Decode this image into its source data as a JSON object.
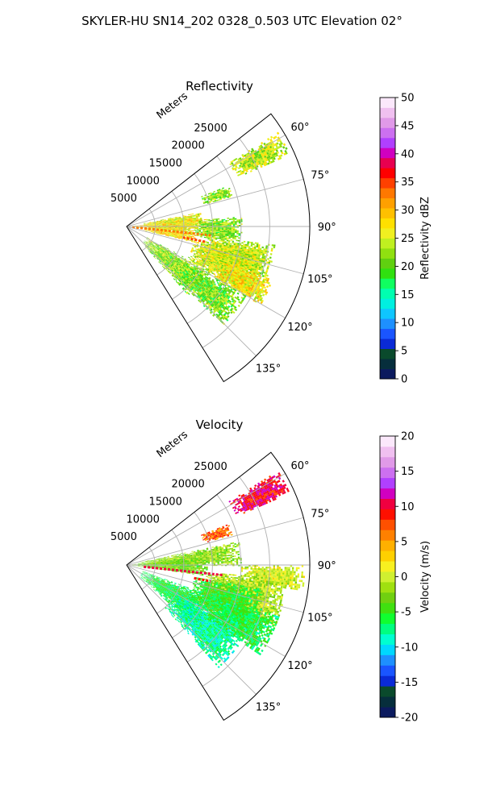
{
  "figure": {
    "suptitle": "SKYLER-HU  SN14_202  0328_0.503 UTC Elevation 02°"
  },
  "chart_data": [
    {
      "type": "heatmap",
      "title": "Reflectivity",
      "projection": "polar-sector",
      "radial_axis": {
        "label": "Meters",
        "ticks": [
          5000,
          10000,
          15000,
          20000,
          25000
        ],
        "tick_labels": [
          "5000",
          "10000",
          "15000",
          "20000",
          "25000"
        ],
        "range": [
          0,
          32000
        ]
      },
      "azimuth_axis": {
        "range_deg": [
          52,
          148
        ],
        "ticks_deg": [
          60,
          75,
          90,
          105,
          120,
          135
        ],
        "tick_labels": [
          "60°",
          "75°",
          "90°",
          "105°",
          "120°",
          "135°"
        ]
      },
      "grid": true,
      "colorbar": {
        "label": "Reflectivity dBZ",
        "range": [
          0,
          50
        ],
        "ticks": [
          0,
          5,
          10,
          15,
          20,
          25,
          30,
          35,
          40,
          45,
          50
        ],
        "tick_labels": [
          "0",
          "5",
          "10",
          "15",
          "20",
          "25",
          "30",
          "35",
          "40",
          "45",
          "50"
        ]
      },
      "echoes": [
        {
          "az": [
            58,
            66
          ],
          "r": [
            21000,
            31000
          ],
          "value": 24
        },
        {
          "az": [
            68,
            74
          ],
          "r": [
            14000,
            19000
          ],
          "value": 22
        },
        {
          "az": [
            79,
            86
          ],
          "r": [
            3000,
            13000
          ],
          "value": 26
        },
        {
          "az": [
            84,
            92
          ],
          "r": [
            1000,
            14000
          ],
          "value": 27
        },
        {
          "az": [
            85,
            98
          ],
          "r": [
            12000,
            20000
          ],
          "value": 22
        },
        {
          "az": [
            90,
            96
          ],
          "r": [
            1500,
            12000
          ],
          "value": 26
        },
        {
          "az": [
            95,
            103
          ],
          "r": [
            3000,
            12000
          ],
          "value": 28
        },
        {
          "az": [
            97,
            112
          ],
          "r": [
            14000,
            26000
          ],
          "value": 24
        },
        {
          "az": [
            100,
            120
          ],
          "r": [
            12000,
            24000
          ],
          "value": 25
        },
        {
          "az": [
            110,
            120
          ],
          "r": [
            18000,
            27000
          ],
          "value": 27
        },
        {
          "az": [
            118,
            138
          ],
          "r": [
            4000,
            16000
          ],
          "value": 22
        },
        {
          "az": [
            120,
            136
          ],
          "r": [
            12000,
            24000
          ],
          "value": 21
        }
      ],
      "streaks": [
        {
          "az": 96,
          "r": [
            1000,
            15000
          ],
          "value": 33
        },
        {
          "az": 101,
          "r": [
            10000,
            14000
          ],
          "value": 34
        }
      ]
    },
    {
      "type": "heatmap",
      "title": "Velocity",
      "projection": "polar-sector",
      "radial_axis": {
        "label": "Meters",
        "ticks": [
          5000,
          10000,
          15000,
          20000,
          25000
        ],
        "tick_labels": [
          "5000",
          "10000",
          "15000",
          "20000",
          "25000"
        ],
        "range": [
          0,
          32000
        ]
      },
      "azimuth_axis": {
        "range_deg": [
          52,
          148
        ],
        "ticks_deg": [
          60,
          75,
          90,
          105,
          120,
          135
        ],
        "tick_labels": [
          "60°",
          "75°",
          "90°",
          "105°",
          "120°",
          "135°"
        ]
      },
      "grid": true,
      "colorbar": {
        "label": "Velocity (m/s)",
        "range": [
          -20,
          20
        ],
        "ticks": [
          -20,
          -15,
          -10,
          -5,
          0,
          5,
          10,
          15,
          20
        ],
        "tick_labels": [
          "-20",
          "-15",
          "-10",
          "-5",
          "0",
          "5",
          "10",
          "15",
          "20"
        ]
      },
      "echoes": [
        {
          "az": [
            58,
            66
          ],
          "r": [
            21000,
            31000
          ],
          "value": 10
        },
        {
          "az": [
            68,
            74
          ],
          "r": [
            14000,
            19000
          ],
          "value": 7
        },
        {
          "az": [
            78,
            90
          ],
          "r": [
            2000,
            20000
          ],
          "value": -2
        },
        {
          "az": [
            84,
            98
          ],
          "r": [
            1000,
            14000
          ],
          "value": -3
        },
        {
          "az": [
            90,
            98
          ],
          "r": [
            20000,
            31000
          ],
          "value": 0
        },
        {
          "az": [
            95,
            112
          ],
          "r": [
            14000,
            28000
          ],
          "value": -1
        },
        {
          "az": [
            100,
            120
          ],
          "r": [
            12000,
            24000
          ],
          "value": -5
        },
        {
          "az": [
            110,
            132
          ],
          "r": [
            3000,
            16000
          ],
          "value": -6
        },
        {
          "az": [
            118,
            138
          ],
          "r": [
            10000,
            24000
          ],
          "value": -8
        },
        {
          "az": [
            108,
            124
          ],
          "r": [
            16000,
            28000
          ],
          "value": -6
        }
      ],
      "streaks": [
        {
          "az": 96,
          "r": [
            3000,
            17000
          ],
          "value": 10
        },
        {
          "az": 101,
          "r": [
            12000,
            15000
          ],
          "value": 9
        }
      ]
    }
  ]
}
